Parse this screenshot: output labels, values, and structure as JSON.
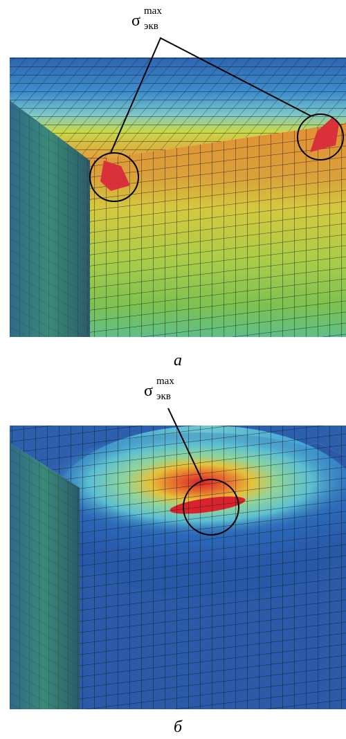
{
  "panels": [
    {
      "label": {
        "symbol": "σ",
        "sup": "max",
        "sub": "экв"
      },
      "caption": "а"
    },
    {
      "label": {
        "symbol": "σ",
        "sup": "max",
        "sub": "экв"
      },
      "caption": "б"
    }
  ]
}
